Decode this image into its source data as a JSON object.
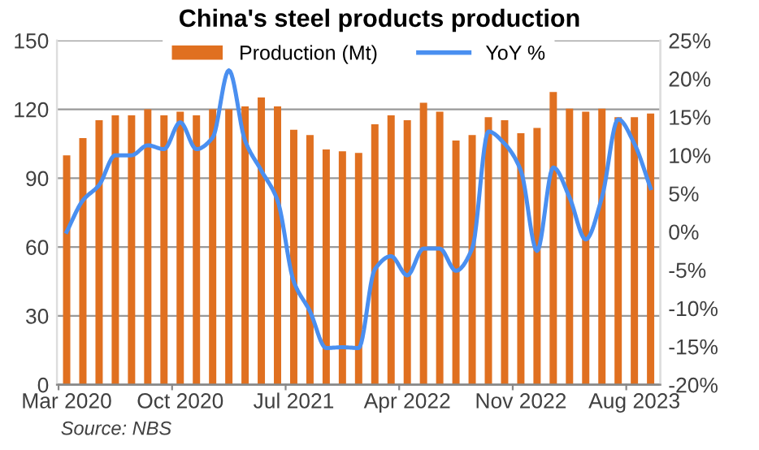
{
  "chart_data": {
    "type": "bar",
    "title": "China's steel products production",
    "categories": [
      "Mar 2020",
      null,
      null,
      null,
      null,
      null,
      null,
      "Oct 2020",
      null,
      null,
      null,
      null,
      null,
      null,
      "Jul 2021",
      null,
      null,
      null,
      null,
      null,
      null,
      "Apr 2022",
      null,
      null,
      null,
      null,
      null,
      null,
      "Nov 2022",
      null,
      null,
      null,
      null,
      null,
      null,
      "Aug 2023",
      null
    ],
    "series": [
      {
        "name": "Production (Mt)",
        "color": "#e07020",
        "values": [
          100,
          107.5,
          115.3,
          117.4,
          117.4,
          120,
          117.4,
          119,
          117.4,
          120,
          120,
          121.3,
          125.2,
          121.3,
          111.1,
          108.8,
          102.5,
          101.7,
          101,
          113.5,
          117.4,
          115.3,
          122.9,
          119,
          106.4,
          108.8,
          116.6,
          115.3,
          109.6,
          111.9,
          127.6,
          120.3,
          119,
          120.3,
          116.6,
          116.6,
          118.2
        ]
      },
      {
        "name": "YoY %",
        "type": "line",
        "axis": "y2",
        "color": "#4a8ff0",
        "values": [
          0,
          4.1,
          6.1,
          10,
          10,
          11.3,
          10.8,
          14.3,
          10.8,
          12.3,
          21.1,
          11.9,
          8,
          4.1,
          -6.5,
          -10.4,
          -15.2,
          -15.1,
          -15.2,
          -4.9,
          -3.2,
          -5.7,
          -2.2,
          -2.2,
          -5.1,
          -2.2,
          13.1,
          11.5,
          8,
          -2.5,
          8.4,
          4.5,
          -1,
          4.5,
          14.7,
          11.5,
          5.7
        ]
      }
    ],
    "ylim": [
      0,
      150
    ],
    "yticks": [
      0,
      30,
      60,
      90,
      120,
      150
    ],
    "y2lim": [
      -20,
      25
    ],
    "y2ticks": [
      {
        "value": -20,
        "label": "-20%"
      },
      {
        "value": -15,
        "label": "-15%"
      },
      {
        "value": -10,
        "label": "-10%"
      },
      {
        "value": -5,
        "label": "-5%"
      },
      {
        "value": 0,
        "label": "0%"
      },
      {
        "value": 5,
        "label": "5%"
      },
      {
        "value": 10,
        "label": "10%"
      },
      {
        "value": 15,
        "label": "15%"
      },
      {
        "value": 20,
        "label": "20%"
      },
      {
        "value": 25,
        "label": "25%"
      }
    ],
    "grid": "y",
    "legend": "top",
    "annotations": [
      "Source: NBS"
    ]
  }
}
